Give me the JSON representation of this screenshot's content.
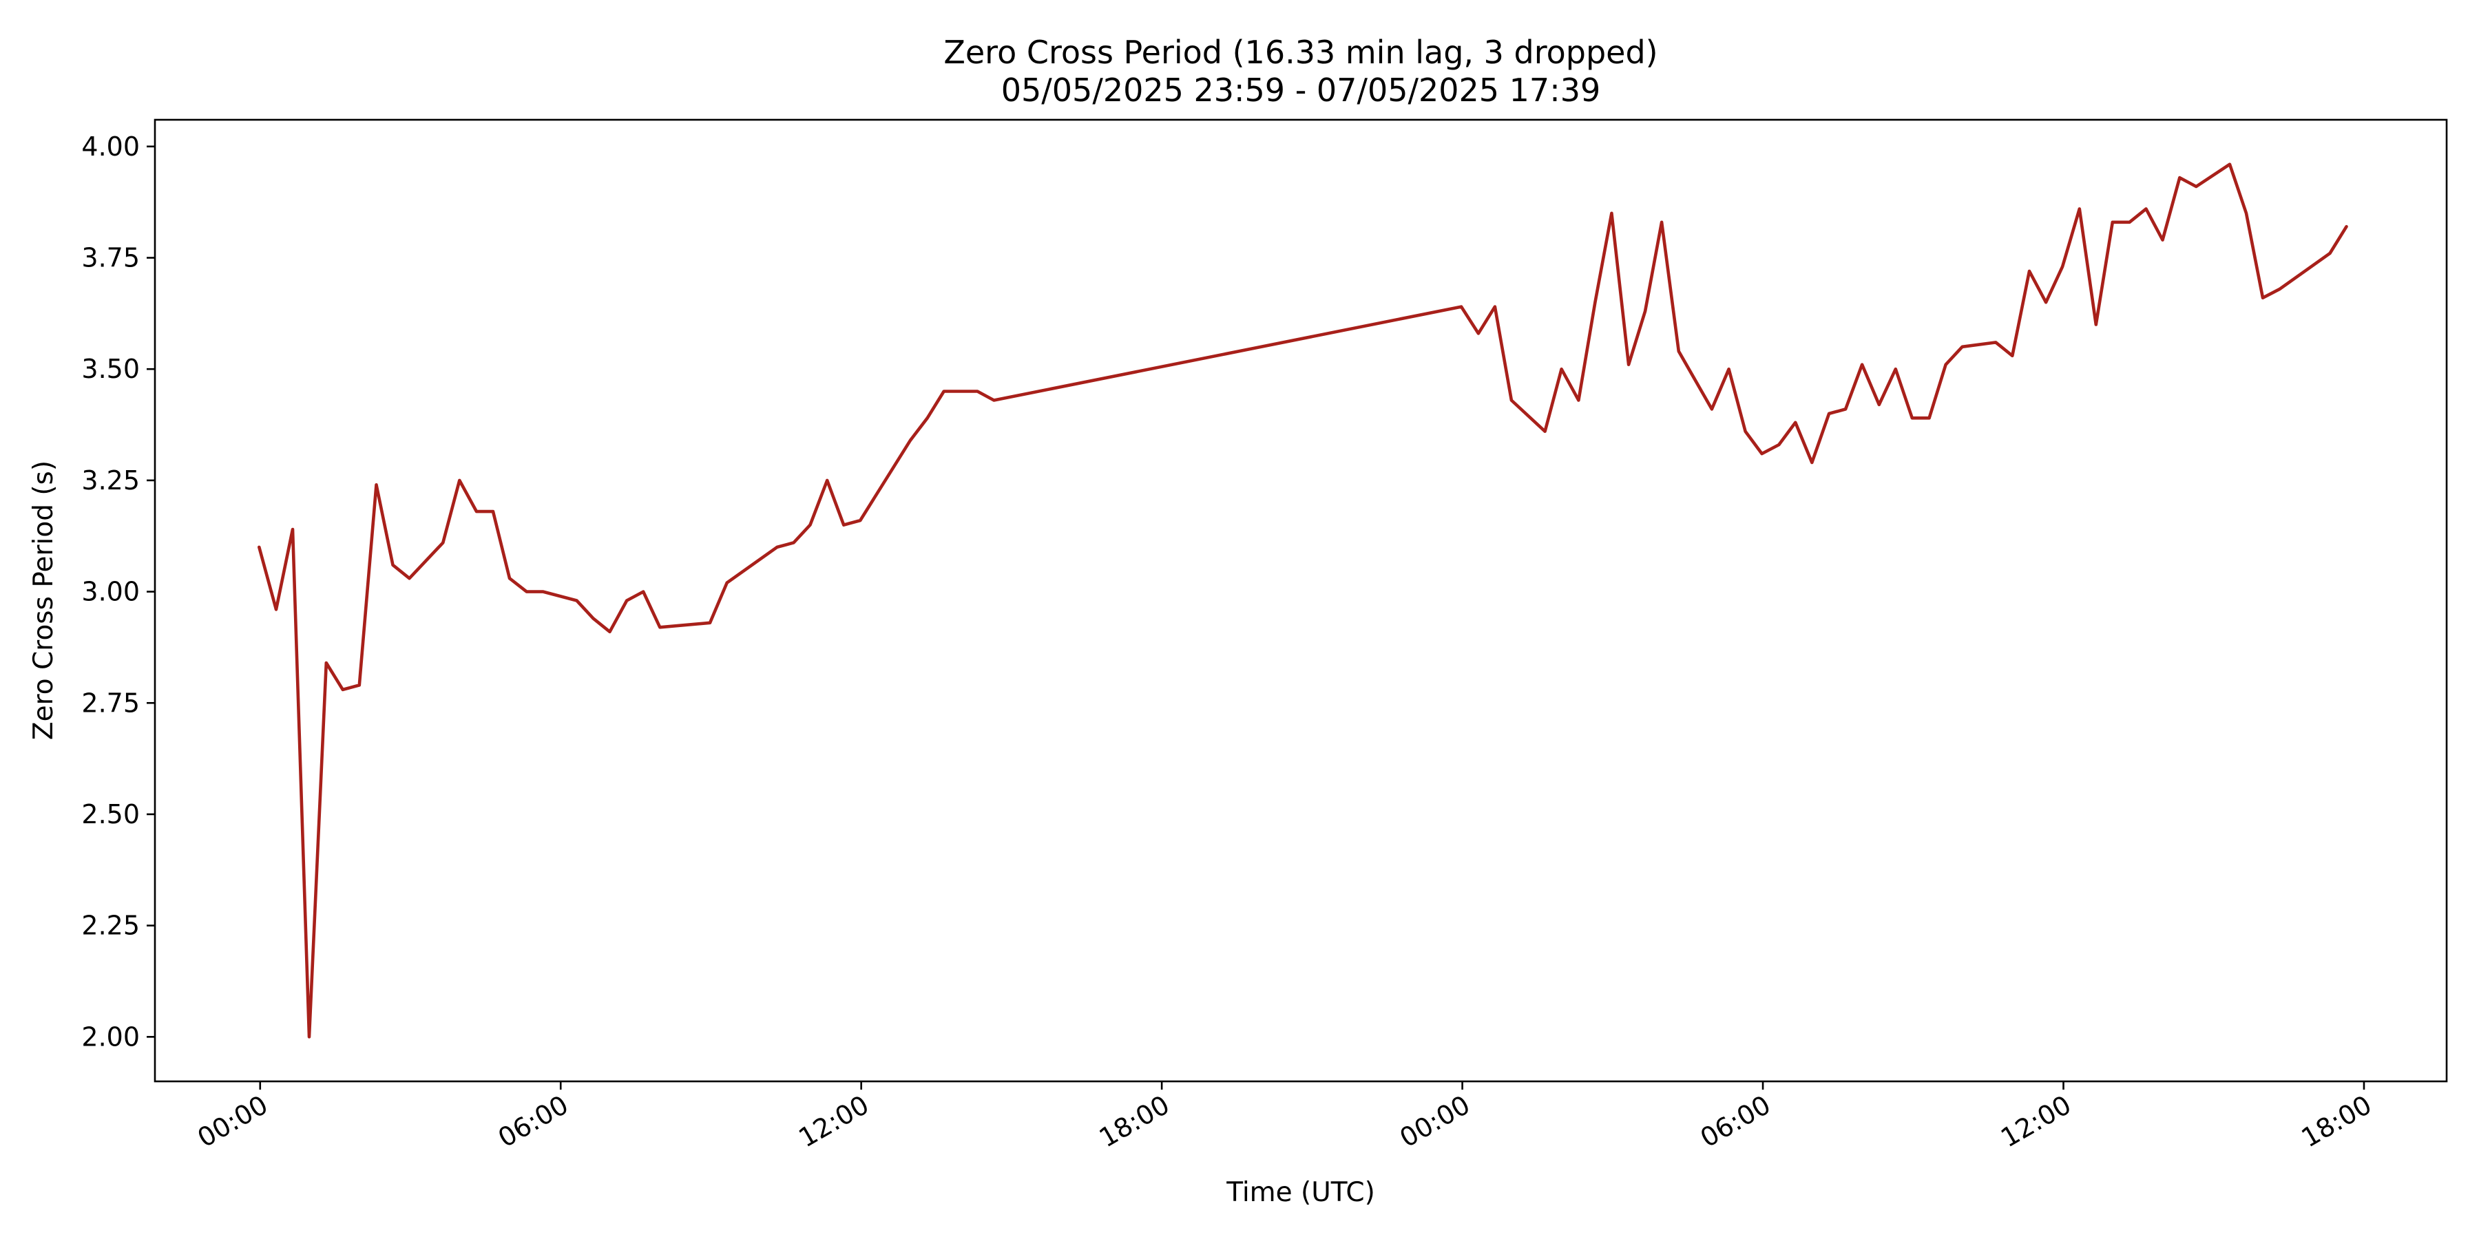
{
  "chart_data": {
    "type": "line",
    "title": "Zero Cross Period (16.33 min lag, 3 dropped)",
    "subtitle": "05/05/2025 23:59 - 07/05/2025 17:39",
    "xlabel": "Time (UTC)",
    "ylabel": "Zero Cross Period (s)",
    "ylim": [
      1.9,
      4.06
    ],
    "yticks": [
      "2.00",
      "2.25",
      "2.50",
      "2.75",
      "3.00",
      "3.25",
      "3.50",
      "3.75",
      "4.00"
    ],
    "xlim_hours": [
      -2.1,
      43.65
    ],
    "xticks": [
      {
        "hour": 0,
        "label": "00:00"
      },
      {
        "hour": 6,
        "label": "06:00"
      },
      {
        "hour": 12,
        "label": "12:00"
      },
      {
        "hour": 18,
        "label": "18:00"
      },
      {
        "hour": 24,
        "label": "00:00"
      },
      {
        "hour": 30,
        "label": "06:00"
      },
      {
        "hour": 36,
        "label": "12:00"
      },
      {
        "hour": 42,
        "label": "18:00"
      }
    ],
    "grid": false,
    "legend": "none",
    "series": [
      {
        "color": "#a8201a",
        "points": [
          [
            -0.02,
            3.1
          ],
          [
            0.32,
            2.96
          ],
          [
            0.65,
            3.14
          ],
          [
            0.98,
            2.0
          ],
          [
            1.32,
            2.84
          ],
          [
            1.65,
            2.78
          ],
          [
            1.98,
            2.79
          ],
          [
            2.32,
            3.24
          ],
          [
            2.65,
            3.06
          ],
          [
            2.98,
            3.03
          ],
          [
            3.65,
            3.11
          ],
          [
            3.98,
            3.25
          ],
          [
            4.32,
            3.18
          ],
          [
            4.65,
            3.18
          ],
          [
            4.98,
            3.03
          ],
          [
            5.32,
            3.0
          ],
          [
            5.65,
            3.0
          ],
          [
            6.32,
            2.98
          ],
          [
            6.65,
            2.94
          ],
          [
            6.98,
            2.91
          ],
          [
            7.32,
            2.98
          ],
          [
            7.65,
            3.0
          ],
          [
            7.98,
            2.92
          ],
          [
            8.98,
            2.93
          ],
          [
            9.32,
            3.02
          ],
          [
            10.32,
            3.1
          ],
          [
            10.65,
            3.11
          ],
          [
            10.98,
            3.15
          ],
          [
            11.32,
            3.25
          ],
          [
            11.65,
            3.15
          ],
          [
            11.98,
            3.16
          ],
          [
            12.98,
            3.34
          ],
          [
            13.32,
            3.39
          ],
          [
            13.65,
            3.45
          ],
          [
            14.32,
            3.45
          ],
          [
            14.65,
            3.43
          ],
          [
            23.98,
            3.64
          ],
          [
            24.32,
            3.58
          ],
          [
            24.65,
            3.64
          ],
          [
            24.98,
            3.43
          ],
          [
            25.65,
            3.36
          ],
          [
            25.98,
            3.5
          ],
          [
            26.32,
            3.43
          ],
          [
            26.65,
            3.65
          ],
          [
            26.98,
            3.85
          ],
          [
            27.32,
            3.51
          ],
          [
            27.65,
            3.63
          ],
          [
            27.98,
            3.83
          ],
          [
            28.32,
            3.54
          ],
          [
            28.98,
            3.41
          ],
          [
            29.32,
            3.5
          ],
          [
            29.65,
            3.36
          ],
          [
            29.98,
            3.31
          ],
          [
            30.32,
            3.33
          ],
          [
            30.65,
            3.38
          ],
          [
            30.98,
            3.29
          ],
          [
            31.32,
            3.4
          ],
          [
            31.65,
            3.41
          ],
          [
            31.98,
            3.51
          ],
          [
            32.32,
            3.42
          ],
          [
            32.65,
            3.5
          ],
          [
            32.98,
            3.39
          ],
          [
            33.32,
            3.39
          ],
          [
            33.65,
            3.51
          ],
          [
            33.98,
            3.55
          ],
          [
            34.65,
            3.56
          ],
          [
            34.98,
            3.53
          ],
          [
            35.32,
            3.72
          ],
          [
            35.65,
            3.65
          ],
          [
            35.98,
            3.73
          ],
          [
            36.32,
            3.86
          ],
          [
            36.65,
            3.6
          ],
          [
            36.98,
            3.83
          ],
          [
            37.32,
            3.83
          ],
          [
            37.65,
            3.86
          ],
          [
            37.98,
            3.79
          ],
          [
            38.32,
            3.93
          ],
          [
            38.65,
            3.91
          ],
          [
            39.32,
            3.96
          ],
          [
            39.65,
            3.85
          ],
          [
            39.98,
            3.66
          ],
          [
            40.32,
            3.68
          ],
          [
            41.32,
            3.76
          ],
          [
            41.65,
            3.82
          ]
        ]
      }
    ]
  }
}
